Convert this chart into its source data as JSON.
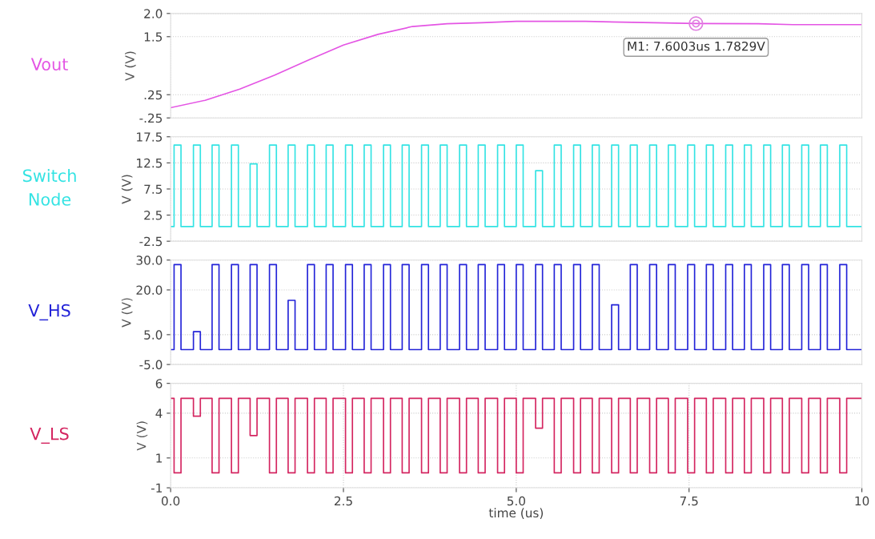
{
  "chart_data": [
    {
      "type": "line",
      "ylabel": "V (V)",
      "xlim": [
        0,
        10
      ],
      "ylim": [
        -0.25,
        2.0
      ],
      "yticks": [
        {
          "value": -0.25,
          "label": "-.25"
        },
        {
          "value": 0.25,
          "label": ".25"
        },
        1.5,
        {
          "value": 2.0,
          "label": "2.0"
        }
      ],
      "tick_labels": "y",
      "grid": true,
      "x": [
        0,
        0.5,
        1,
        1.5,
        2,
        2.5,
        3,
        3.5,
        4,
        4.5,
        5,
        6,
        7,
        7.6003,
        8.5,
        9,
        10
      ],
      "series": [
        {
          "name": "Vout",
          "color": "#e455e4",
          "values": [
            -0.03,
            0.13,
            0.37,
            0.67,
            1.0,
            1.32,
            1.55,
            1.72,
            1.78,
            1.8,
            1.83,
            1.83,
            1.8,
            1.7829,
            1.78,
            1.76,
            1.76
          ]
        }
      ],
      "annotations": [
        {
          "text": "M1: 7.6003us 1.7829V",
          "x": 7.6003,
          "y": 1.7829
        }
      ]
    },
    {
      "type": "line",
      "ylabel": "V (V)",
      "xlim": [
        0,
        10
      ],
      "ylim": [
        -2.5,
        17.5
      ],
      "yticks": [
        -2.5,
        2.5,
        7.5,
        12.5,
        17.5
      ],
      "tick_labels": "y",
      "grid": true,
      "x": [
        0,
        0.05,
        0.05,
        0.15,
        0.15,
        0.33,
        0.33,
        0.43,
        0.43,
        0.6,
        0.6,
        0.7,
        0.7,
        0.88,
        0.88,
        0.98,
        0.98,
        1.15,
        1.15,
        1.25,
        1.25,
        1.43,
        1.43,
        1.53,
        1.53,
        1.7,
        1.7,
        1.8,
        1.8,
        1.98,
        1.98,
        2.08,
        2.08,
        2.25,
        2.25,
        2.35,
        2.35,
        2.53,
        2.53,
        2.63,
        2.63,
        2.8,
        2.8,
        2.9,
        2.9,
        3.08,
        3.08,
        3.18,
        3.18,
        3.35,
        3.35,
        3.45,
        3.45,
        3.63,
        3.63,
        3.73,
        3.73,
        3.9,
        3.9,
        4.0,
        4.0,
        4.18,
        4.18,
        4.28,
        4.28,
        4.45,
        4.45,
        4.55,
        4.55,
        4.73,
        4.73,
        4.83,
        4.83,
        5.0,
        5.0,
        5.1,
        5.1,
        5.28,
        5.28,
        5.38,
        5.38,
        5.55,
        5.55,
        5.65,
        5.65,
        5.83,
        5.83,
        5.93,
        5.93,
        6.1,
        6.1,
        6.2,
        6.2,
        6.38,
        6.38,
        6.48,
        6.48,
        6.65,
        6.65,
        6.75,
        6.75,
        6.93,
        6.93,
        7.03,
        7.03,
        7.2,
        7.2,
        7.3,
        7.3,
        7.48,
        7.48,
        7.58,
        7.58,
        7.75,
        7.75,
        7.85,
        7.85,
        8.03,
        8.03,
        8.13,
        8.13,
        8.3,
        8.3,
        8.4,
        8.4,
        8.58,
        8.58,
        8.68,
        8.68,
        8.85,
        8.85,
        8.95,
        8.95,
        9.13,
        9.13,
        9.23,
        9.23,
        9.4,
        9.4,
        9.5,
        9.5,
        9.68,
        9.68,
        9.78,
        9.78,
        10
      ],
      "series": [
        {
          "name": "Switch\nNode",
          "color": "#33e3e3",
          "values": [
            0.3,
            0.3,
            15.9,
            15.9,
            0.3,
            0.3,
            15.9,
            15.9,
            0.3,
            0.3,
            15.9,
            15.9,
            0.3,
            0.3,
            15.9,
            15.9,
            0.3,
            0.3,
            12.3,
            12.3,
            0.3,
            0.3,
            15.9,
            15.9,
            0.3,
            0.3,
            15.9,
            15.9,
            0.3,
            0.3,
            15.9,
            15.9,
            0.3,
            0.3,
            15.9,
            15.9,
            0.3,
            0.3,
            15.9,
            15.9,
            0.3,
            0.3,
            15.9,
            15.9,
            0.3,
            0.3,
            15.9,
            15.9,
            0.3,
            0.3,
            15.9,
            15.9,
            0.3,
            0.3,
            15.9,
            15.9,
            0.3,
            0.3,
            15.9,
            15.9,
            0.3,
            0.3,
            15.9,
            15.9,
            0.3,
            0.3,
            15.9,
            15.9,
            0.3,
            0.3,
            15.9,
            15.9,
            0.3,
            0.3,
            15.9,
            15.9,
            0.3,
            0.3,
            11.0,
            11.0,
            0.3,
            0.3,
            15.9,
            15.9,
            0.3,
            0.3,
            15.9,
            15.9,
            0.3,
            0.3,
            15.9,
            15.9,
            0.3,
            0.3,
            15.9,
            15.9,
            0.3,
            0.3,
            15.9,
            15.9,
            0.3,
            0.3,
            15.9,
            15.9,
            0.3,
            0.3,
            15.9,
            15.9,
            0.3,
            0.3,
            15.9,
            15.9,
            0.3,
            0.3,
            15.9,
            15.9,
            0.3,
            0.3,
            15.9,
            15.9,
            0.3,
            0.3,
            15.9,
            15.9,
            0.3,
            0.3,
            15.9,
            15.9,
            0.3,
            0.3,
            15.9,
            15.9,
            0.3,
            0.3,
            15.9,
            15.9,
            0.3,
            0.3,
            15.9,
            15.9,
            0.3,
            0.3,
            15.9,
            15.9,
            0.3,
            0.3
          ]
        }
      ]
    },
    {
      "type": "line",
      "ylabel": "V (V)",
      "xlim": [
        0,
        10
      ],
      "ylim": [
        -5.0,
        30.0
      ],
      "yticks": [
        {
          "value": -5.0,
          "label": "-5.0"
        },
        {
          "value": 5.0,
          "label": "5.0"
        },
        {
          "value": 20.0,
          "label": "20.0"
        },
        {
          "value": 30.0,
          "label": "30.0"
        }
      ],
      "tick_labels": "y",
      "grid": true,
      "x": [
        0,
        0.05,
        0.05,
        0.15,
        0.15,
        0.33,
        0.33,
        0.43,
        0.43,
        0.6,
        0.6,
        0.7,
        0.7,
        0.88,
        0.88,
        0.98,
        0.98,
        1.15,
        1.15,
        1.25,
        1.25,
        1.43,
        1.43,
        1.53,
        1.53,
        1.7,
        1.7,
        1.8,
        1.8,
        1.98,
        1.98,
        2.08,
        2.08,
        2.25,
        2.25,
        2.35,
        2.35,
        2.53,
        2.53,
        2.63,
        2.63,
        2.8,
        2.8,
        2.9,
        2.9,
        3.08,
        3.08,
        3.18,
        3.18,
        3.35,
        3.35,
        3.45,
        3.45,
        3.63,
        3.63,
        3.73,
        3.73,
        3.9,
        3.9,
        4.0,
        4.0,
        4.18,
        4.18,
        4.28,
        4.28,
        4.45,
        4.45,
        4.55,
        4.55,
        4.73,
        4.73,
        4.83,
        4.83,
        5.0,
        5.0,
        5.1,
        5.1,
        5.28,
        5.28,
        5.38,
        5.38,
        5.55,
        5.55,
        5.65,
        5.65,
        5.83,
        5.83,
        5.93,
        5.93,
        6.1,
        6.1,
        6.2,
        6.2,
        6.38,
        6.38,
        6.48,
        6.48,
        6.65,
        6.65,
        6.75,
        6.75,
        6.93,
        6.93,
        7.03,
        7.03,
        7.2,
        7.2,
        7.3,
        7.3,
        7.48,
        7.48,
        7.58,
        7.58,
        7.75,
        7.75,
        7.85,
        7.85,
        8.03,
        8.03,
        8.13,
        8.13,
        8.3,
        8.3,
        8.4,
        8.4,
        8.58,
        8.58,
        8.68,
        8.68,
        8.85,
        8.85,
        8.95,
        8.95,
        9.13,
        9.13,
        9.23,
        9.23,
        9.4,
        9.4,
        9.5,
        9.5,
        9.68,
        9.68,
        9.78,
        9.78,
        10
      ],
      "series": [
        {
          "name": "V_HS",
          "color": "#2323d8",
          "values": [
            0,
            0,
            28.5,
            28.5,
            0,
            0,
            6.0,
            6.0,
            0,
            0,
            28.5,
            28.5,
            0,
            0,
            28.5,
            28.5,
            0,
            0,
            28.5,
            28.5,
            0,
            0,
            28.5,
            28.5,
            0,
            0,
            16.5,
            16.5,
            0,
            0,
            28.5,
            28.5,
            0,
            0,
            28.5,
            28.5,
            0,
            0,
            28.5,
            28.5,
            0,
            0,
            28.5,
            28.5,
            0,
            0,
            28.5,
            28.5,
            0,
            0,
            28.5,
            28.5,
            0,
            0,
            28.5,
            28.5,
            0,
            0,
            28.5,
            28.5,
            0,
            0,
            28.5,
            28.5,
            0,
            0,
            28.5,
            28.5,
            0,
            0,
            28.5,
            28.5,
            0,
            0,
            28.5,
            28.5,
            0,
            0,
            28.5,
            28.5,
            0,
            0,
            28.5,
            28.5,
            0,
            0,
            28.5,
            28.5,
            0,
            0,
            28.5,
            28.5,
            0,
            0,
            15.0,
            15.0,
            0,
            0,
            28.5,
            28.5,
            0,
            0,
            28.5,
            28.5,
            0,
            0,
            28.5,
            28.5,
            0,
            0,
            28.5,
            28.5,
            0,
            0,
            28.5,
            28.5,
            0,
            0,
            28.5,
            28.5,
            0,
            0,
            28.5,
            28.5,
            0,
            0,
            28.5,
            28.5,
            0,
            0,
            28.5,
            28.5,
            0,
            0,
            28.5,
            28.5,
            0,
            0,
            28.5,
            28.5,
            0,
            0,
            28.5,
            28.5,
            0,
            0
          ]
        }
      ]
    },
    {
      "type": "line",
      "ylabel": "V (V)",
      "xlabel": "time (us)",
      "xlim": [
        0,
        10
      ],
      "xticks": [
        {
          "value": 0,
          "label": "0.0"
        },
        2.5,
        {
          "value": 5,
          "label": "5.0"
        },
        7.5,
        10
      ],
      "ylim": [
        -1,
        6
      ],
      "yticks": [
        -1,
        1,
        4,
        6
      ],
      "grid": true,
      "x": [
        0,
        0.05,
        0.05,
        0.15,
        0.15,
        0.33,
        0.33,
        0.43,
        0.43,
        0.6,
        0.6,
        0.7,
        0.7,
        0.88,
        0.88,
        0.98,
        0.98,
        1.15,
        1.15,
        1.25,
        1.25,
        1.43,
        1.43,
        1.53,
        1.53,
        1.7,
        1.7,
        1.8,
        1.8,
        1.98,
        1.98,
        2.08,
        2.08,
        2.25,
        2.25,
        2.35,
        2.35,
        2.53,
        2.53,
        2.63,
        2.63,
        2.8,
        2.8,
        2.9,
        2.9,
        3.08,
        3.08,
        3.18,
        3.18,
        3.35,
        3.35,
        3.45,
        3.45,
        3.63,
        3.63,
        3.73,
        3.73,
        3.9,
        3.9,
        4.0,
        4.0,
        4.18,
        4.18,
        4.28,
        4.28,
        4.45,
        4.45,
        4.55,
        4.55,
        4.73,
        4.73,
        4.83,
        4.83,
        5.0,
        5.0,
        5.1,
        5.1,
        5.28,
        5.28,
        5.38,
        5.38,
        5.55,
        5.55,
        5.65,
        5.65,
        5.83,
        5.83,
        5.93,
        5.93,
        6.1,
        6.1,
        6.2,
        6.2,
        6.38,
        6.38,
        6.48,
        6.48,
        6.65,
        6.65,
        6.75,
        6.75,
        6.93,
        6.93,
        7.03,
        7.03,
        7.2,
        7.2,
        7.3,
        7.3,
        7.48,
        7.48,
        7.58,
        7.58,
        7.75,
        7.75,
        7.85,
        7.85,
        8.03,
        8.03,
        8.13,
        8.13,
        8.3,
        8.3,
        8.4,
        8.4,
        8.58,
        8.58,
        8.68,
        8.68,
        8.85,
        8.85,
        8.95,
        8.95,
        9.13,
        9.13,
        9.23,
        9.23,
        9.4,
        9.4,
        9.5,
        9.5,
        9.68,
        9.68,
        9.78,
        9.78,
        10
      ],
      "series": [
        {
          "name": "V_LS",
          "color": "#d42560",
          "values": [
            5,
            5,
            0,
            0,
            5,
            5,
            3.8,
            3.8,
            5,
            5,
            0,
            0,
            5,
            5,
            0,
            0,
            5,
            5,
            2.5,
            2.5,
            5,
            5,
            0,
            0,
            5,
            5,
            0,
            0,
            5,
            5,
            0,
            0,
            5,
            5,
            0,
            0,
            5,
            5,
            0,
            0,
            5,
            5,
            0,
            0,
            5,
            5,
            0,
            0,
            5,
            5,
            0,
            0,
            5,
            5,
            0,
            0,
            5,
            5,
            0,
            0,
            5,
            5,
            0,
            0,
            5,
            5,
            0,
            0,
            5,
            5,
            0,
            0,
            5,
            5,
            0,
            0,
            5,
            5,
            3.0,
            3.0,
            5,
            5,
            0,
            0,
            5,
            5,
            0,
            0,
            5,
            5,
            0,
            0,
            5,
            5,
            0,
            0,
            5,
            5,
            0,
            0,
            5,
            5,
            0,
            0,
            5,
            5,
            0,
            0,
            5,
            5,
            0,
            0,
            5,
            5,
            0,
            0,
            5,
            5,
            0,
            0,
            5,
            5,
            0,
            0,
            5,
            5,
            0,
            0,
            5,
            5,
            0,
            0,
            5,
            5,
            0,
            0,
            5,
            5,
            0,
            0,
            5,
            5,
            0,
            0,
            5,
            5
          ]
        }
      ]
    }
  ]
}
